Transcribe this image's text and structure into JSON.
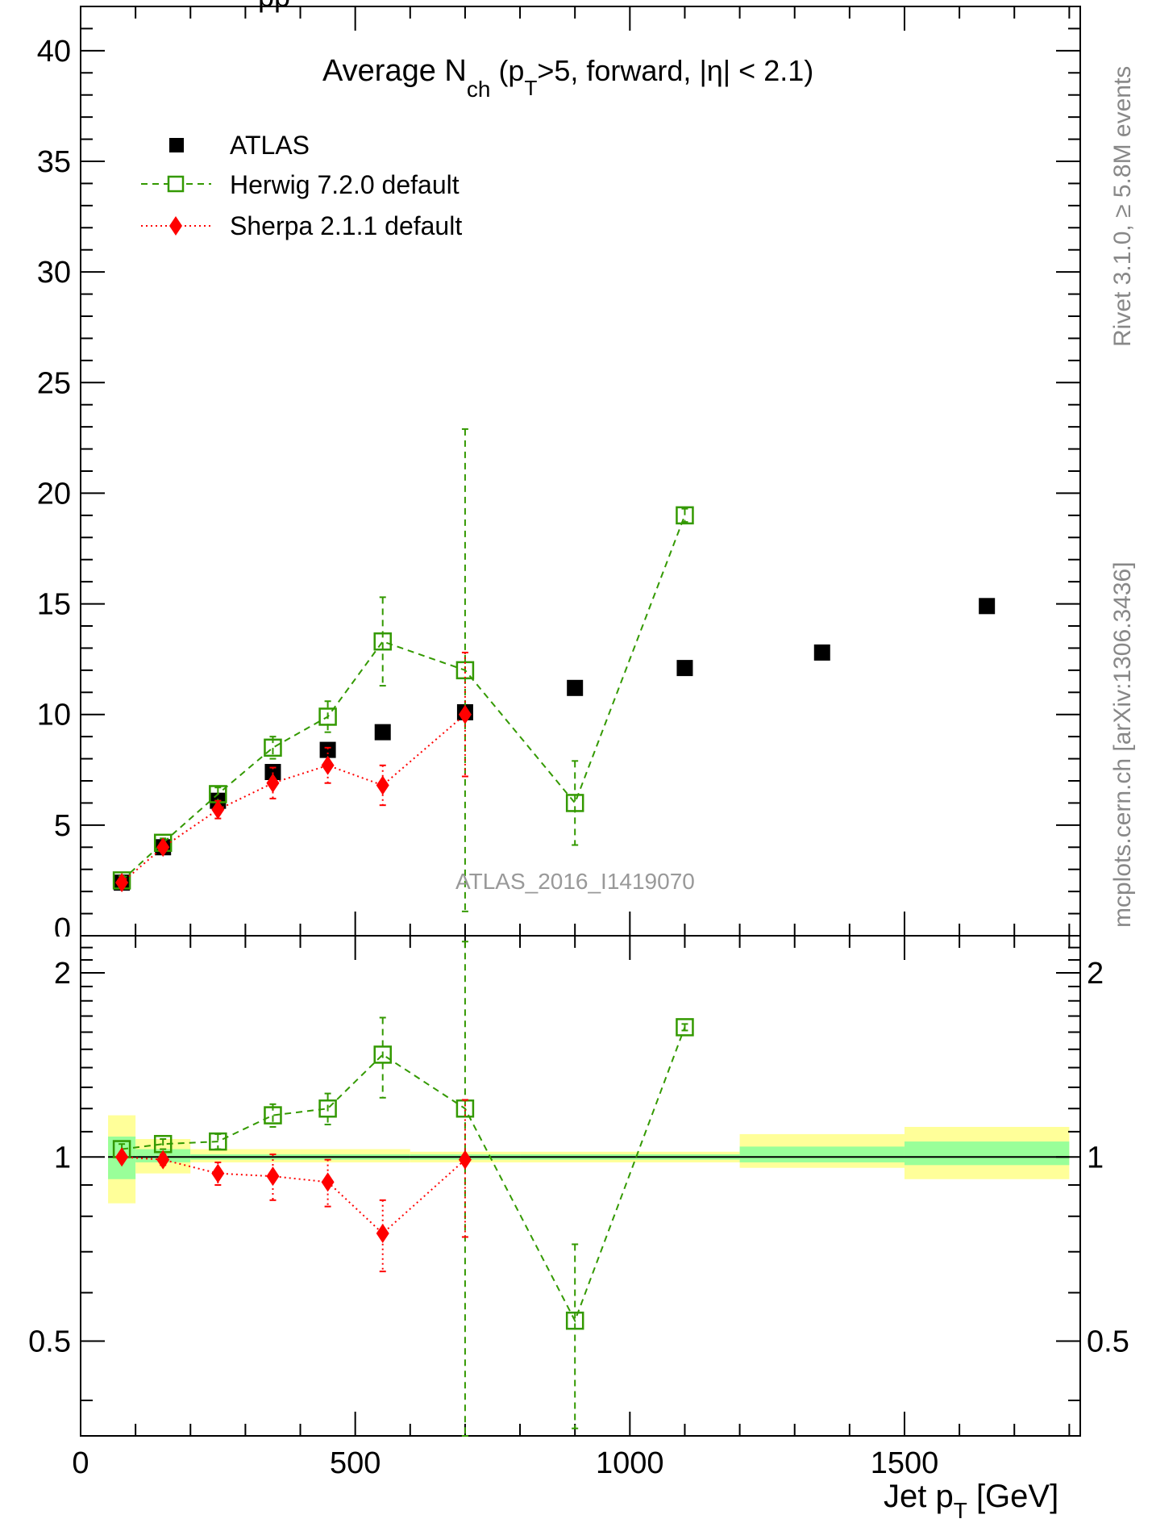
{
  "chart_data": {
    "type": "scatter",
    "title": "Average N",
    "title_sub": "ch",
    "title_rest_1": " (p",
    "title_rest_sub": "T",
    "title_rest_2": ">5, forward, |η| < 2.1)",
    "top_cut_label": "pp",
    "analysis_label": "ATLAS_2016_I1419070",
    "side_label_1": "Rivet 3.1.0, ≥ 5.8M events",
    "side_label_2": "mcplots.cern.ch [arXiv:1306.3436]",
    "xlabel": "Jet p",
    "xlabel_sub": "T",
    "xlabel_unit": " [GeV]",
    "xlim": [
      0,
      1820
    ],
    "main_ylim": [
      0,
      42
    ],
    "ratio_ylim": [
      0.35,
      2.3
    ],
    "ratio_yscale": "log",
    "x_ticks": [
      0,
      500,
      1000,
      1500
    ],
    "main_y_ticks": [
      5,
      10,
      15,
      20,
      25,
      30,
      35,
      40
    ],
    "ratio_y_ticks": [
      0.5,
      1,
      2
    ],
    "legend_position": "top-left",
    "series": [
      {
        "name": "ATLAS",
        "style": "filled-square",
        "color": "#000000",
        "x": [
          75,
          150,
          250,
          350,
          450,
          550,
          700,
          900,
          1100,
          1350,
          1650
        ],
        "y": [
          2.4,
          4.0,
          6.1,
          7.4,
          8.4,
          9.2,
          10.1,
          11.2,
          12.1,
          12.8,
          14.9
        ]
      },
      {
        "name": "Herwig 7.2.0 default",
        "style": "open-square-dashed",
        "color": "#339900",
        "x": [
          75,
          150,
          250,
          350,
          450,
          550,
          700,
          900,
          1100
        ],
        "y": [
          2.5,
          4.2,
          6.4,
          8.5,
          9.9,
          13.3,
          12.0,
          6.0,
          19.0
        ],
        "y_err": [
          0.2,
          0.2,
          0.3,
          0.5,
          0.7,
          2.0,
          10.9,
          1.9,
          0.3
        ],
        "ratio": [
          1.03,
          1.05,
          1.06,
          1.17,
          1.2,
          1.47,
          1.2,
          0.54,
          1.63
        ],
        "ratio_err": [
          0.02,
          0.02,
          0.03,
          0.05,
          0.07,
          0.22,
          1.05,
          0.18,
          0.02
        ]
      },
      {
        "name": "Sherpa 2.1.1 default",
        "style": "filled-diamond-dotted",
        "color": "#ff0000",
        "x": [
          75,
          150,
          250,
          350,
          450,
          550,
          700
        ],
        "y": [
          2.4,
          4.0,
          5.7,
          6.9,
          7.7,
          6.8,
          10.0
        ],
        "y_err": [
          0.1,
          0.2,
          0.4,
          0.7,
          0.8,
          0.9,
          2.8
        ],
        "ratio": [
          1.0,
          0.99,
          0.94,
          0.93,
          0.91,
          0.75,
          0.99
        ],
        "ratio_err": [
          0.01,
          0.02,
          0.04,
          0.08,
          0.08,
          0.1,
          0.25
        ]
      }
    ],
    "ratio_bands": [
      {
        "x0": 50,
        "x1": 100,
        "inner": [
          0.92,
          1.08
        ],
        "outer": [
          0.84,
          1.17
        ]
      },
      {
        "x0": 100,
        "x1": 200,
        "inner": [
          0.98,
          1.03
        ],
        "outer": [
          0.94,
          1.07
        ]
      },
      {
        "x0": 200,
        "x1": 400,
        "inner": [
          0.99,
          1.01
        ],
        "outer": [
          0.98,
          1.03
        ]
      },
      {
        "x0": 400,
        "x1": 600,
        "inner": [
          0.99,
          1.01
        ],
        "outer": [
          0.98,
          1.03
        ]
      },
      {
        "x0": 600,
        "x1": 800,
        "inner": [
          0.99,
          1.01
        ],
        "outer": [
          0.98,
          1.02
        ]
      },
      {
        "x0": 800,
        "x1": 1200,
        "inner": [
          0.99,
          1.01
        ],
        "outer": [
          0.98,
          1.02
        ]
      },
      {
        "x0": 1200,
        "x1": 1500,
        "inner": [
          0.98,
          1.04
        ],
        "outer": [
          0.96,
          1.09
        ]
      },
      {
        "x0": 1500,
        "x1": 1800,
        "inner": [
          0.97,
          1.06
        ],
        "outer": [
          0.92,
          1.12
        ]
      }
    ],
    "colors": {
      "band_inner": "#99ff99",
      "band_outer": "#ffff99",
      "side_label": "#888888",
      "analysis_label": "#999999"
    }
  }
}
